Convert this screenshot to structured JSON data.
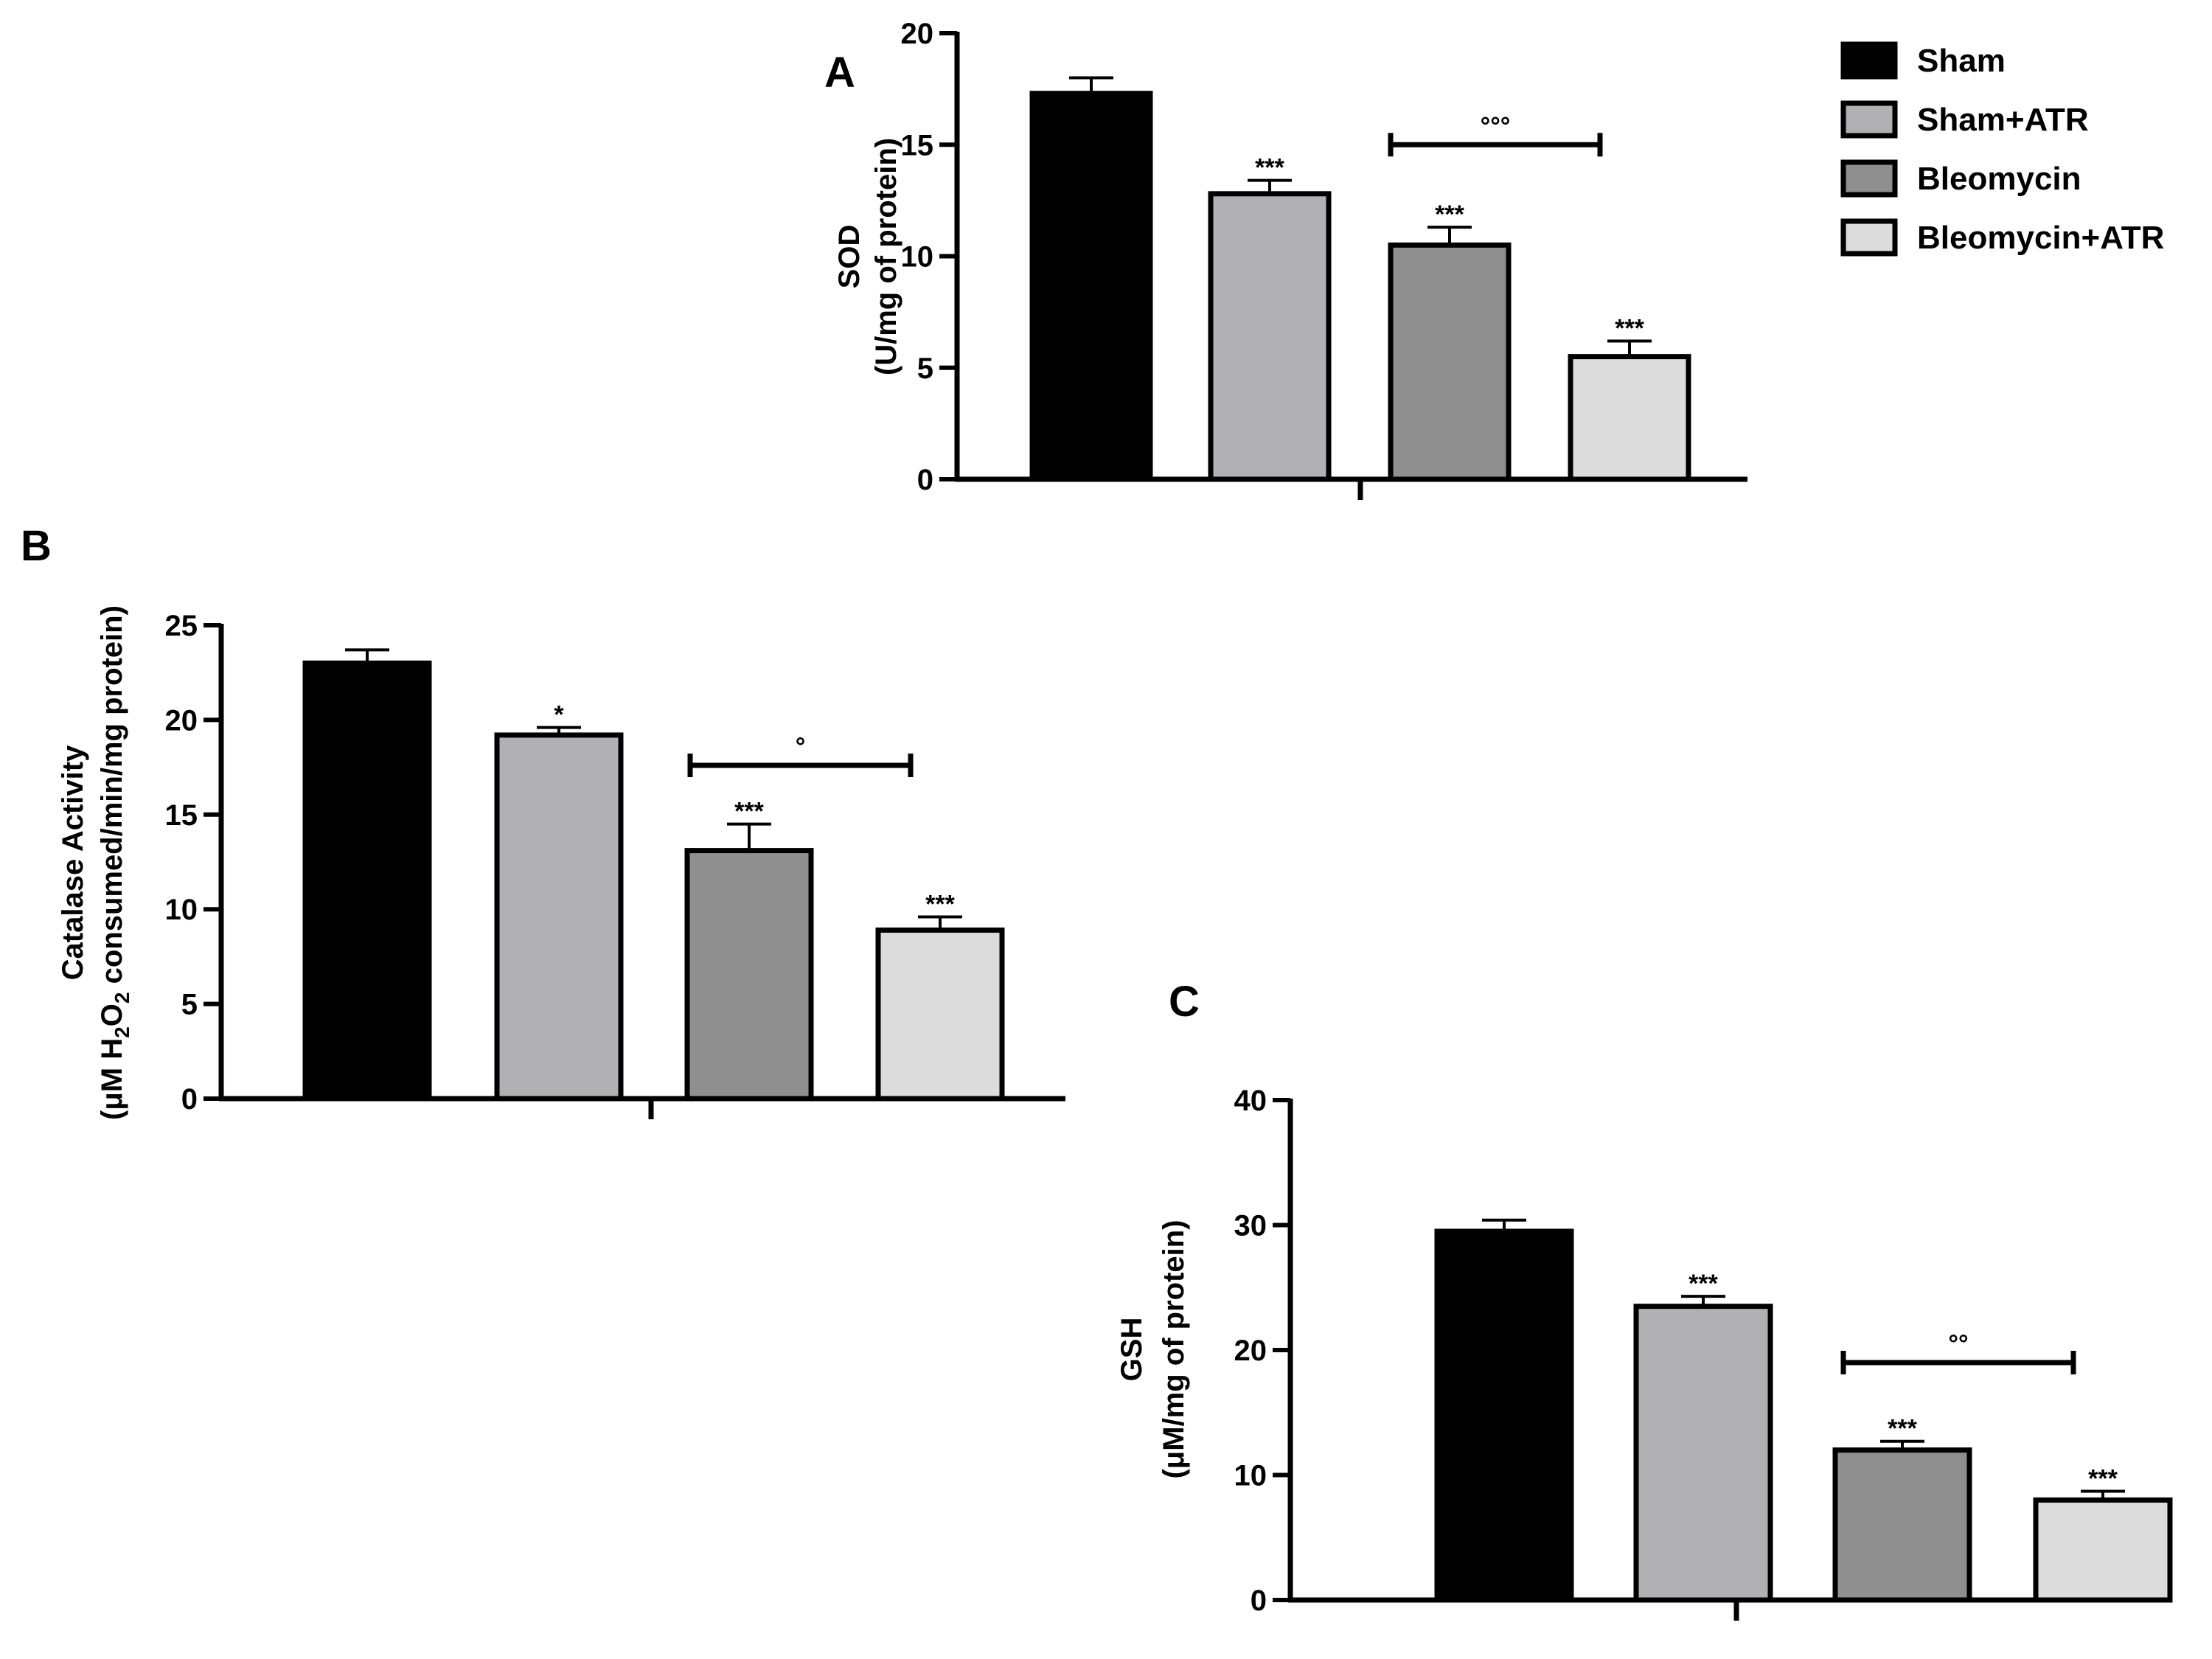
{
  "legend": [
    {
      "label": "Sham",
      "color": "#000000"
    },
    {
      "label": "Sham+ATR",
      "color": "#b1b1b3"
    },
    {
      "label": "Bleomycin",
      "color": "#8f8f8f"
    },
    {
      "label": "Bleomycin+ATR",
      "color": "#dcdcdc"
    }
  ],
  "chart_data": [
    {
      "type": "bar",
      "panel": "A",
      "ylabel_lines": [
        "SOD",
        "(U/mg of protein)"
      ],
      "categories": [
        "Sham",
        "Sham+ATR",
        "Bleomycin",
        "Bleomycin+ATR"
      ],
      "colors": [
        "#000000",
        "#b1b1b3",
        "#8f8f8f",
        "#dcdcdc"
      ],
      "values": [
        17.3,
        12.8,
        10.5,
        5.5
      ],
      "errors": [
        0.7,
        0.6,
        0.8,
        0.7
      ],
      "significance": [
        "",
        "***",
        "***",
        "***"
      ],
      "bracket": {
        "from": 2,
        "to": 3,
        "y": 15,
        "label": "°°°"
      },
      "ylim": [
        0,
        20
      ],
      "yticks": [
        0,
        5,
        10,
        15,
        20
      ]
    },
    {
      "type": "bar",
      "panel": "B",
      "ylabel_lines": [
        "Catalase Activity",
        "(μM H2O2 consumed/min/mg protein)"
      ],
      "categories": [
        "Sham",
        "Sham+ATR",
        "Bleomycin",
        "Bleomycin+ATR"
      ],
      "colors": [
        "#000000",
        "#b1b1b3",
        "#8f8f8f",
        "#dcdcdc"
      ],
      "values": [
        23.0,
        19.2,
        13.1,
        8.9
      ],
      "errors": [
        0.7,
        0.4,
        1.4,
        0.7
      ],
      "significance": [
        "",
        "*",
        "***",
        "***"
      ],
      "bracket": {
        "from": 2,
        "to": 3,
        "y": 17.6,
        "label": "°"
      },
      "ylim": [
        0,
        25
      ],
      "yticks": [
        0,
        5,
        10,
        15,
        20,
        25
      ]
    },
    {
      "type": "bar",
      "panel": "C",
      "ylabel_lines": [
        "GSH",
        "(μM/mg of protein)"
      ],
      "categories": [
        "Sham",
        "Sham+ATR",
        "Bleomycin",
        "Bleomycin+ATR"
      ],
      "colors": [
        "#000000",
        "#b1b1b3",
        "#8f8f8f",
        "#dcdcdc"
      ],
      "values": [
        29.5,
        23.5,
        12.0,
        8.0
      ],
      "errors": [
        0.9,
        0.8,
        0.7,
        0.7
      ],
      "significance": [
        "",
        "***",
        "***",
        "***"
      ],
      "bracket": {
        "from": 2,
        "to": 3,
        "y": 19,
        "label": "°°"
      },
      "ylim": [
        0,
        40
      ],
      "yticks": [
        0,
        10,
        20,
        30,
        40
      ]
    }
  ]
}
